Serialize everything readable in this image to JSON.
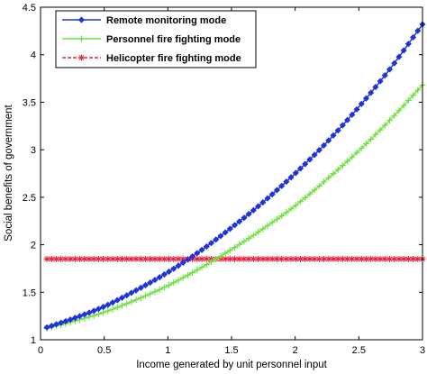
{
  "chart_data": {
    "type": "line",
    "xlabel": "Income generated by unit personnel input",
    "ylabel": "Social benefits of government",
    "xlim": [
      0,
      3
    ],
    "ylim": [
      1,
      4.5
    ],
    "xticks": [
      0,
      0.5,
      1,
      1.5,
      2,
      2.5,
      3
    ],
    "yticks": [
      1,
      1.5,
      2,
      2.5,
      3,
      3.5,
      4,
      4.5
    ],
    "xtick_labels": [
      "0",
      "0.5",
      "1",
      "1.5",
      "2",
      "2.5",
      "3"
    ],
    "ytick_labels": [
      "1",
      "1.5",
      "2",
      "2.5",
      "3",
      "3.5",
      "4",
      "4.5"
    ],
    "grid": false,
    "legend_position": "top-left",
    "x": [
      0.05,
      0.25,
      0.5,
      0.75,
      1.0,
      1.25,
      1.5,
      1.75,
      2.0,
      2.25,
      2.5,
      2.75,
      3.0
    ],
    "series": [
      {
        "name": "Remote monitoring mode",
        "color": "#2035d8",
        "marker": "diamond",
        "line": "solid",
        "values": [
          1.13,
          1.22,
          1.35,
          1.52,
          1.71,
          1.93,
          2.18,
          2.45,
          2.75,
          3.08,
          3.45,
          3.86,
          4.32
        ]
      },
      {
        "name": "Personnel fire fighting mode",
        "color": "#6fe040",
        "marker": "plus",
        "line": "solid",
        "values": [
          1.12,
          1.19,
          1.29,
          1.42,
          1.57,
          1.75,
          1.95,
          2.17,
          2.41,
          2.69,
          2.99,
          3.32,
          3.68
        ]
      },
      {
        "name": "Helicopter fire fighting mode",
        "color": "#e8203a",
        "marker": "asterisk",
        "line": "dashed",
        "values": [
          1.85,
          1.85,
          1.85,
          1.85,
          1.85,
          1.85,
          1.85,
          1.85,
          1.85,
          1.85,
          1.85,
          1.85,
          1.85
        ]
      }
    ]
  }
}
